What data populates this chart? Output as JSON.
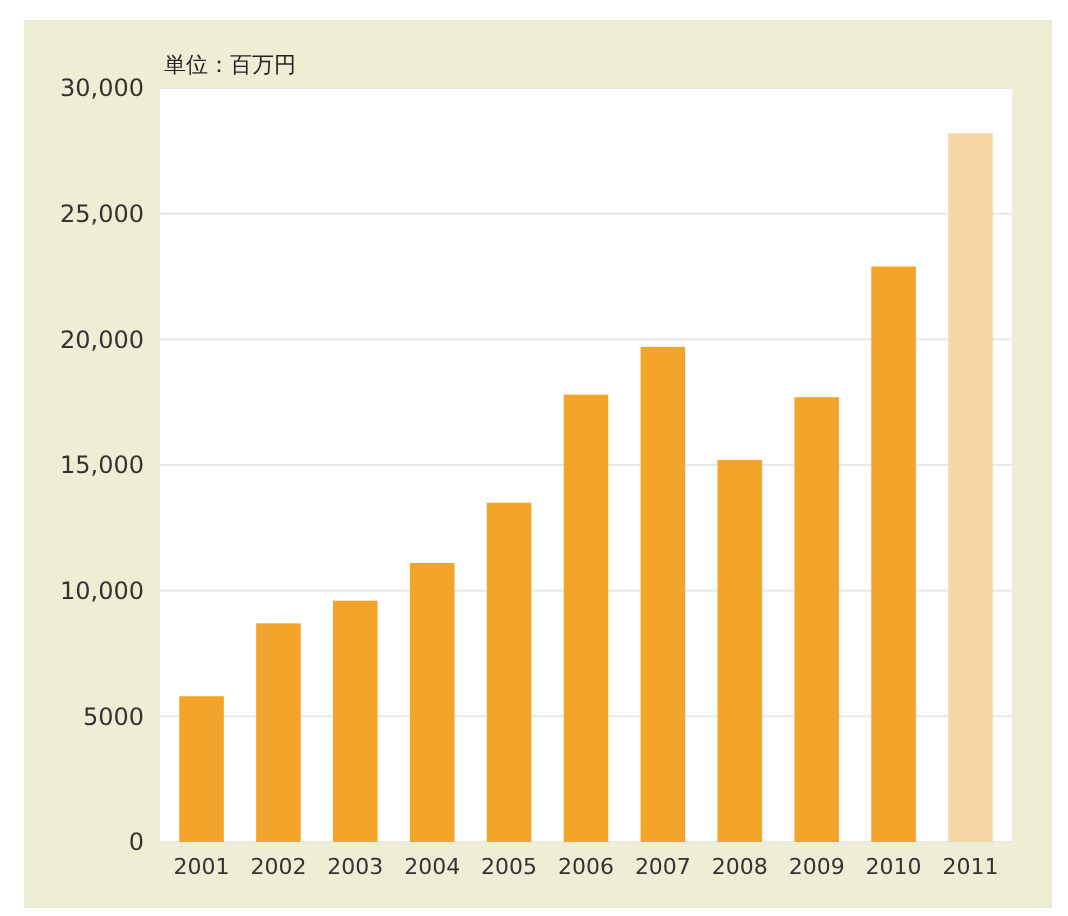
{
  "chart_data": {
    "type": "bar",
    "ylabel": "単位：百万円",
    "categories": [
      "2001",
      "2002",
      "2003",
      "2004",
      "2005",
      "2006",
      "2007",
      "2008",
      "2009",
      "2010",
      "2011"
    ],
    "values": [
      5800,
      8700,
      9600,
      11100,
      13500,
      17800,
      19700,
      15200,
      17700,
      22900,
      28200
    ],
    "colors": [
      "#f2a52a",
      "#f2a52a",
      "#f2a52a",
      "#f2a52a",
      "#f2a52a",
      "#f2a52a",
      "#f2a52a",
      "#f2a52a",
      "#f2a52a",
      "#f2a52a",
      "#f6d8a6"
    ],
    "ylim": [
      0,
      30000
    ],
    "yticks": [
      0,
      5000,
      {
        "value": 10000,
        "label": "10,000"
      },
      {
        "value": 15000,
        "label": "15,000"
      },
      {
        "value": 20000,
        "label": "20,000"
      },
      {
        "value": 25000,
        "label": "25,000"
      },
      {
        "value": 30000,
        "label": "30,000"
      }
    ],
    "grid": "y"
  }
}
